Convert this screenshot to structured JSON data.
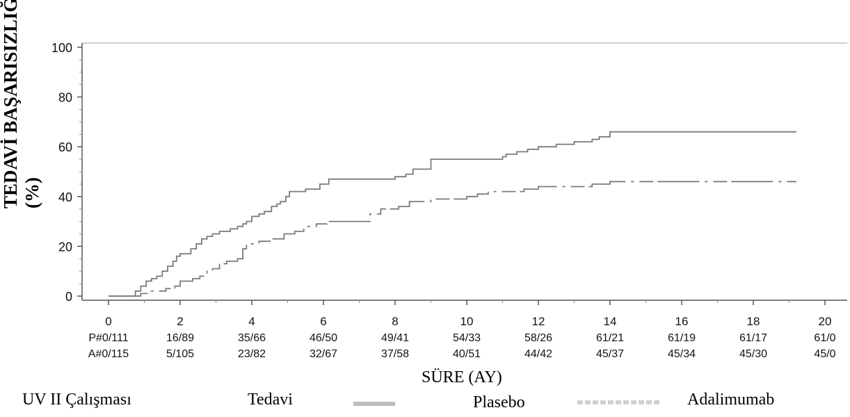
{
  "chart_data": {
    "type": "line",
    "ylabel_line1": "TEDAVİ BAŞARISIZLIĞI ORANI",
    "ylabel_line2": "(%)",
    "xlabel": "SÜRE (AY)",
    "xlim": [
      0,
      20
    ],
    "ylim": [
      0,
      100
    ],
    "xticks": [
      "0",
      "2",
      "4",
      "6",
      "8",
      "10",
      "12",
      "14",
      "16",
      "18",
      "20"
    ],
    "yticks": [
      "0",
      "20",
      "40",
      "60",
      "80",
      "100"
    ],
    "grid": false,
    "series": [
      {
        "name": "Plasebo",
        "style": "solid",
        "color": "#7a7a7a",
        "x": [
          0,
          0.75,
          0.9,
          1.05,
          1.2,
          1.35,
          1.5,
          1.65,
          1.8,
          1.9,
          2.0,
          2.3,
          2.45,
          2.6,
          2.75,
          2.9,
          3.1,
          3.4,
          3.6,
          3.75,
          3.85,
          4.0,
          4.2,
          4.35,
          4.55,
          4.7,
          4.8,
          4.95,
          5.05,
          5.5,
          5.9,
          6.15,
          7.7,
          8.0,
          8.3,
          8.5,
          9.0,
          10.0,
          11.0,
          11.1,
          11.4,
          11.7,
          12.0,
          12.5,
          13.0,
          13.5,
          13.7,
          14.0,
          19.2
        ],
        "y": [
          0,
          2,
          4,
          6,
          7,
          8,
          10,
          12,
          14,
          16,
          17,
          19,
          21,
          23,
          24,
          25,
          26,
          27,
          28,
          29,
          30,
          32,
          33,
          34,
          36,
          37,
          38,
          40,
          42,
          43,
          45,
          47,
          47,
          48,
          49,
          51,
          55,
          55,
          56,
          57,
          58,
          59,
          60,
          61,
          62,
          63,
          64,
          66,
          66
        ]
      },
      {
        "name": "Adalimumab",
        "style": "dashed",
        "color": "#7a7a7a",
        "x": [
          0,
          0.9,
          1.15,
          1.6,
          1.85,
          2.0,
          2.35,
          2.55,
          2.75,
          2.9,
          3.1,
          3.3,
          3.6,
          3.75,
          3.85,
          4.2,
          4.5,
          4.9,
          5.2,
          5.45,
          5.8,
          6.1,
          7.0,
          7.3,
          7.6,
          8.1,
          8.4,
          9.0,
          10.0,
          10.3,
          10.6,
          11.0,
          11.6,
          12.0,
          12.2,
          13.5,
          13.8,
          14.0,
          19.2
        ],
        "y": [
          0,
          1,
          2,
          3,
          4,
          6,
          7,
          8,
          10,
          11,
          13,
          14,
          15,
          19,
          21,
          22,
          23,
          25,
          26,
          28,
          29,
          30,
          30,
          33,
          35,
          36,
          38,
          39,
          40,
          41,
          42,
          42,
          43,
          44,
          44,
          45,
          45,
          46,
          46
        ]
      }
    ],
    "risk_table": {
      "row_labels": [
        "P#",
        "A#"
      ],
      "P": [
        "0/111",
        "16/89",
        "35/66",
        "46/50",
        "49/41",
        "54/33",
        "58/26",
        "61/21",
        "61/19",
        "61/17",
        "61/0"
      ],
      "A": [
        "0/115",
        "5/105",
        "23/82",
        "32/67",
        "37/58",
        "40/51",
        "44/42",
        "45/37",
        "45/34",
        "45/30",
        "45/0"
      ]
    },
    "legend": {
      "study": "UV II Çalışması",
      "title": "Tedavi",
      "entries": [
        "Plasebo",
        "Adalimumab"
      ]
    }
  }
}
